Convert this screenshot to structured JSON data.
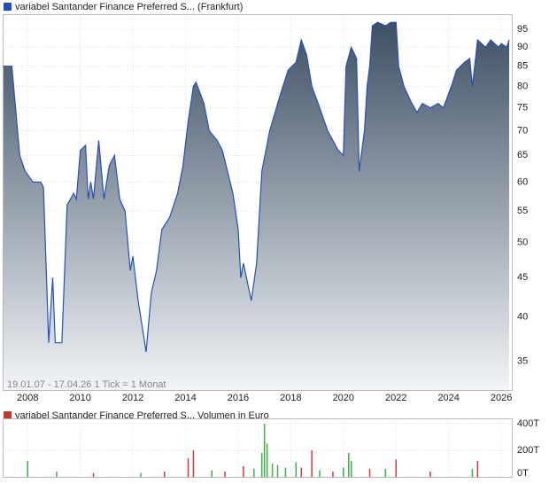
{
  "chart_data": [
    {
      "type": "area",
      "series": [
        {
          "name": "variabel Santander Finance Preferred S... (Frankfurt)",
          "color": "#2450b8",
          "x": [
            2007.05,
            2007.4,
            2007.7,
            2007.9,
            2008.2,
            2008.5,
            2008.6,
            2008.8,
            2008.95,
            2009.05,
            2009.3,
            2009.5,
            2009.75,
            2009.85,
            2010.0,
            2010.2,
            2010.3,
            2010.4,
            2010.5,
            2010.7,
            2010.9,
            2011.1,
            2011.3,
            2011.5,
            2011.7,
            2011.9,
            2012.0,
            2012.2,
            2012.5,
            2012.7,
            2012.9,
            2013.1,
            2013.4,
            2013.7,
            2013.9,
            2014.1,
            2014.3,
            2014.4,
            2014.7,
            2014.9,
            2015.2,
            2015.4,
            2015.8,
            2016.0,
            2016.1,
            2016.2,
            2016.5,
            2016.7,
            2016.9,
            2017.2,
            2017.6,
            2017.9,
            2018.2,
            2018.4,
            2018.6,
            2018.8,
            2019.1,
            2019.4,
            2019.6,
            2019.8,
            2020.0,
            2020.1,
            2020.3,
            2020.5,
            2020.6,
            2020.8,
            2020.9,
            2021.0,
            2021.1,
            2021.3,
            2021.6,
            2021.8,
            2022.0,
            2022.1,
            2022.3,
            2022.6,
            2022.8,
            2023.0,
            2023.3,
            2023.6,
            2023.8,
            2024.1,
            2024.3,
            2024.6,
            2024.8,
            2024.9,
            2025.1,
            2025.4,
            2025.6,
            2025.9,
            2026.0,
            2026.2,
            2026.3
          ],
          "values": [
            85,
            85,
            65,
            62,
            60,
            60,
            59,
            37,
            45,
            37,
            37,
            56,
            58,
            57,
            66,
            67,
            57,
            60,
            57,
            68,
            57,
            63,
            65,
            57,
            55,
            46,
            48,
            42,
            36,
            43,
            46,
            52,
            54,
            58,
            63,
            72,
            80,
            81,
            76,
            70,
            68,
            66,
            58,
            52,
            45,
            47,
            42,
            47,
            62,
            70,
            78,
            84,
            86,
            92,
            88,
            80,
            75,
            70,
            68,
            66,
            65,
            85,
            90,
            87,
            62,
            70,
            80,
            85,
            96,
            97,
            96,
            97,
            97,
            85,
            80,
            76,
            74,
            76,
            75,
            76,
            75,
            80,
            84,
            86,
            87,
            80,
            92,
            90,
            92,
            90,
            91,
            90,
            92
          ]
        }
      ],
      "annotation": "19.01.07 - 17.04.26   1 Tick = 1 Monat",
      "xlim": [
        2007.05,
        2026.4
      ],
      "xticks": [
        2008,
        2010,
        2012,
        2014,
        2016,
        2018,
        2020,
        2022,
        2024,
        2026
      ],
      "ylim": [
        32.1,
        99.4
      ],
      "yticks": [
        35,
        40,
        45,
        50,
        55,
        60,
        65,
        70,
        75,
        80,
        85,
        90,
        95
      ],
      "log_scale": true
    },
    {
      "type": "bar",
      "title": "variabel Santander Finance Preferred S... Volumen in Euro",
      "title_color": "#c0392b",
      "series": [
        {
          "color": "#3cb043",
          "x": [
            2008.0,
            2009.1,
            2012.3,
            2015.0,
            2016.6,
            2016.9,
            2017.0,
            2017.1,
            2017.3,
            2017.5,
            2017.8,
            2018.2,
            2019.1,
            2020.0,
            2020.2,
            2020.3,
            2021.6,
            2024.9
          ],
          "values": [
            120,
            40,
            30,
            50,
            60,
            180,
            400,
            250,
            100,
            90,
            70,
            110,
            50,
            70,
            180,
            120,
            60,
            60
          ]
        },
        {
          "color": "#d23b3b",
          "x": [
            2010.5,
            2013.2,
            2014.1,
            2014.3,
            2015.5,
            2016.2,
            2018.4,
            2018.8,
            2019.6,
            2021.0,
            2022.0,
            2023.3,
            2025.1
          ],
          "values": [
            30,
            40,
            140,
            200,
            40,
            80,
            70,
            200,
            40,
            60,
            130,
            40,
            120
          ]
        }
      ],
      "xlim": [
        2007.05,
        2026.4
      ],
      "ylim": [
        0,
        440
      ],
      "yticks": [
        {
          "value": 0,
          "label": "0T"
        },
        {
          "value": 200,
          "label": "200T"
        },
        {
          "value": 400,
          "label": "400T"
        }
      ]
    }
  ]
}
